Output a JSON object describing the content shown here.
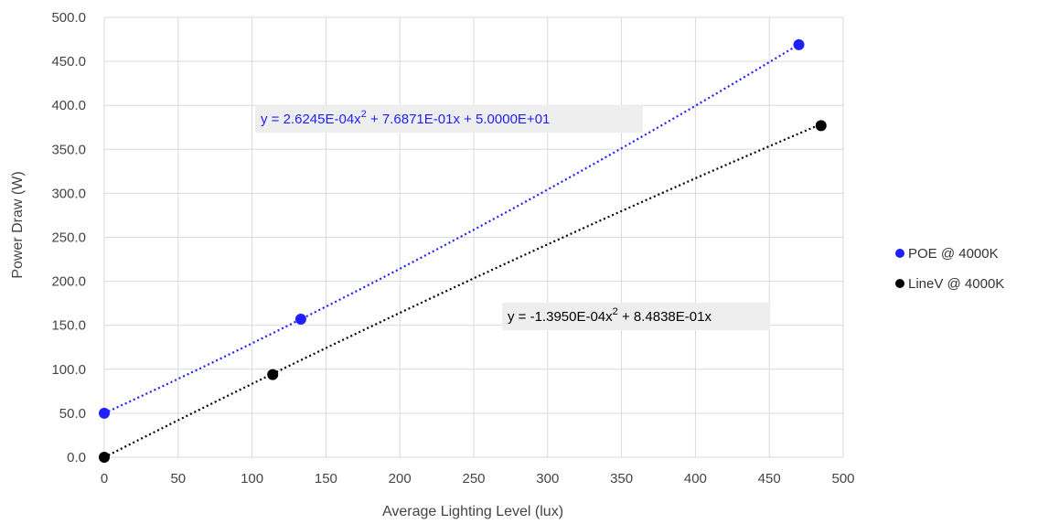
{
  "chart_data": {
    "type": "scatter",
    "xlabel": "Average Lighting Level (lux)",
    "ylabel": "Power Draw (W)",
    "xlim": [
      0,
      500
    ],
    "ylim": [
      0,
      500
    ],
    "x_ticks": [
      "0",
      "50",
      "100",
      "150",
      "200",
      "250",
      "300",
      "350",
      "400",
      "450",
      "500"
    ],
    "y_ticks": [
      "0.0",
      "50.0",
      "100.0",
      "150.0",
      "200.0",
      "250.0",
      "300.0",
      "350.0",
      "400.0",
      "450.0",
      "500.0"
    ],
    "grid": true,
    "legend_position": "right",
    "series": [
      {
        "name": "POE @ 4000K",
        "color": "#1f1fff",
        "points": [
          {
            "x": 0,
            "y": 50
          },
          {
            "x": 133,
            "y": 157
          },
          {
            "x": 470,
            "y": 469
          }
        ],
        "trendline": {
          "kind": "polynomial-2",
          "coefficients": {
            "a": 0.00026245,
            "b": 0.76871,
            "c": 50.0
          },
          "equation": {
            "prefix": "y = 2.6245E-04x",
            "power": "2",
            "suffix": " + 7.6871E-01x + 5.0000E+01"
          }
        }
      },
      {
        "name": "LineV @ 4000K",
        "color": "#000000",
        "points": [
          {
            "x": 0,
            "y": 0
          },
          {
            "x": 114,
            "y": 94
          },
          {
            "x": 485,
            "y": 377
          }
        ],
        "trendline": {
          "kind": "polynomial-2",
          "coefficients": {
            "a": -0.0001395,
            "b": 0.84838,
            "c": 0
          },
          "equation": {
            "prefix": "y = -1.3950E-04x",
            "power": "2",
            "suffix": " + 8.4838E-01x"
          }
        }
      }
    ]
  }
}
